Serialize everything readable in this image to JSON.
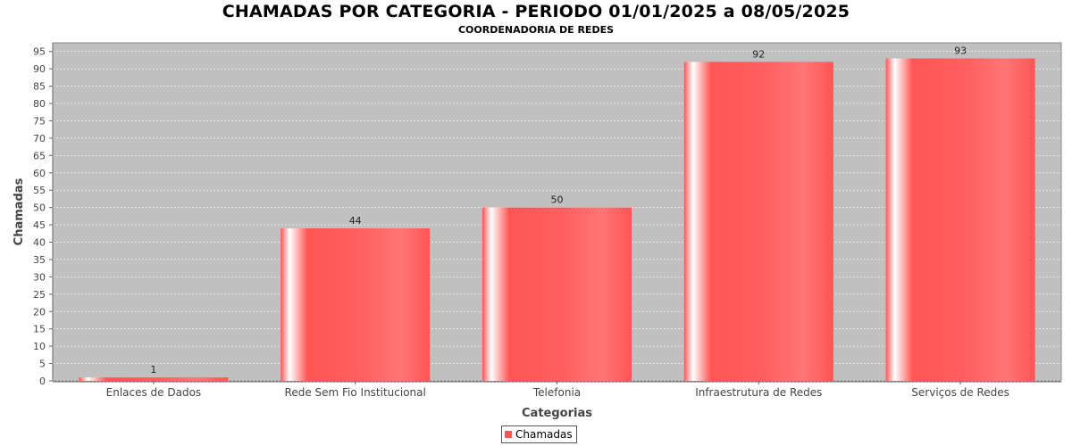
{
  "chart_data": {
    "type": "bar",
    "title": "CHAMADAS POR CATEGORIA - PERIODO 01/01/2025 a 08/05/2025",
    "subtitle": "COORDENADORIA DE REDES",
    "xlabel": "Categorias",
    "ylabel": "Chamadas",
    "categories": [
      "Enlaces de Dados",
      "Rede Sem Fio Institucional",
      "Telefonia",
      "Infraestrutura de Redes",
      "Serviços de Redes"
    ],
    "series": [
      {
        "name": "Chamadas",
        "values": [
          1,
          44,
          50,
          92,
          93
        ],
        "color": "#ff5555"
      }
    ],
    "ylim": [
      0,
      97.5
    ],
    "yticks": [
      0,
      5,
      10,
      15,
      20,
      25,
      30,
      35,
      40,
      45,
      50,
      55,
      60,
      65,
      70,
      75,
      80,
      85,
      90,
      95
    ],
    "grid": true,
    "legend_position": "bottom-center",
    "plot_background": "#c0c0c0"
  }
}
